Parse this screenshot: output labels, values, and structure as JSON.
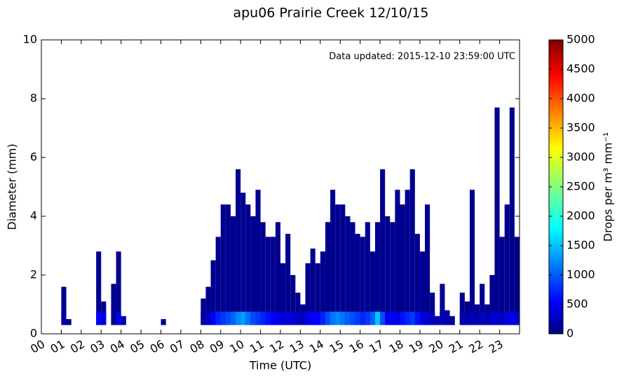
{
  "chart_data": {
    "type": "heatmap",
    "title": "apu06 Prairie Creek 12/10/15",
    "annotation": "Data updated:  2015-12-10 23:59:00 UTC",
    "x_label": "Time (UTC)",
    "y_label": "Diameter (mm)",
    "xlim": [
      0,
      24
    ],
    "xticks": [
      {
        "value": 0,
        "label": "00"
      },
      {
        "value": 1,
        "label": "01"
      },
      {
        "value": 2,
        "label": "02"
      },
      {
        "value": 3,
        "label": "03"
      },
      {
        "value": 4,
        "label": "04"
      },
      {
        "value": 5,
        "label": "05"
      },
      {
        "value": 6,
        "label": "06"
      },
      {
        "value": 7,
        "label": "07"
      },
      {
        "value": 8,
        "label": "08"
      },
      {
        "value": 9,
        "label": "09"
      },
      10,
      11,
      12,
      13,
      14,
      15,
      16,
      17,
      18,
      19,
      20,
      21,
      22,
      23
    ],
    "ylim": [
      0,
      10
    ],
    "yticks": [
      0,
      2,
      4,
      6,
      8,
      10
    ],
    "min_diameter": 0.3,
    "bin_width": 0.25,
    "x": [
      1.0,
      1.25,
      2.75,
      3.0,
      3.5,
      3.75,
      4.0,
      6.0,
      8.0,
      8.25,
      8.5,
      8.75,
      9.0,
      9.25,
      9.5,
      9.75,
      10.0,
      10.25,
      10.5,
      10.75,
      11.0,
      11.25,
      11.5,
      11.75,
      12.0,
      12.25,
      12.5,
      12.75,
      13.0,
      13.25,
      13.5,
      13.75,
      14.0,
      14.25,
      14.5,
      14.75,
      15.0,
      15.25,
      15.5,
      15.75,
      16.0,
      16.25,
      16.5,
      16.75,
      17.0,
      17.25,
      17.5,
      17.75,
      18.0,
      18.25,
      18.5,
      18.75,
      19.0,
      19.25,
      19.5,
      19.75,
      20.0,
      20.25,
      20.5,
      21.0,
      21.25,
      21.5,
      21.75,
      22.0,
      22.25,
      22.5,
      22.75,
      23.0,
      23.25,
      23.5,
      23.75
    ],
    "diameter_top": [
      1.6,
      0.5,
      2.8,
      1.1,
      1.7,
      2.8,
      0.6,
      0.5,
      1.2,
      1.6,
      2.5,
      3.3,
      4.4,
      4.4,
      4.0,
      5.6,
      4.8,
      4.4,
      4.0,
      4.9,
      3.8,
      3.3,
      3.3,
      3.8,
      2.4,
      3.4,
      2.0,
      1.4,
      1.0,
      2.4,
      2.9,
      2.4,
      2.8,
      3.8,
      4.9,
      4.4,
      4.4,
      4.0,
      3.8,
      3.4,
      3.3,
      3.8,
      2.8,
      3.8,
      5.6,
      4.0,
      3.8,
      4.9,
      4.4,
      4.9,
      5.6,
      3.4,
      2.8,
      4.4,
      1.4,
      0.6,
      1.7,
      0.8,
      0.6,
      1.4,
      1.1,
      4.9,
      1.0,
      1.7,
      1.0,
      2.0,
      7.7,
      3.3,
      4.4,
      7.7,
      3.3
    ],
    "peak_drops": [
      200,
      100,
      600,
      500,
      100,
      500,
      300,
      100,
      200,
      300,
      600,
      800,
      900,
      1000,
      1100,
      1300,
      1400,
      1200,
      1000,
      900,
      800,
      700,
      600,
      500,
      400,
      500,
      400,
      300,
      300,
      500,
      600,
      600,
      800,
      1000,
      1200,
      1300,
      1200,
      1100,
      1000,
      900,
      800,
      900,
      1100,
      1600,
      1000,
      600,
      600,
      500,
      700,
      800,
      900,
      700,
      500,
      400,
      300,
      200,
      300,
      200,
      100,
      200,
      200,
      300,
      200,
      300,
      200,
      400,
      400,
      300,
      500,
      500,
      400
    ],
    "colorbar": {
      "label": "Drops per m³  mm⁻¹",
      "lim": [
        0,
        5000
      ],
      "ticks": [
        0,
        500,
        1000,
        1500,
        2000,
        2500,
        3000,
        3500,
        4000,
        4500,
        5000
      ]
    }
  }
}
